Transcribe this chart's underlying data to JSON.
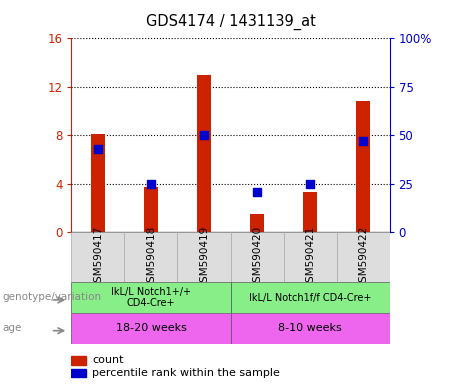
{
  "title": "GDS4174 / 1431139_at",
  "samples": [
    "GSM590417",
    "GSM590418",
    "GSM590419",
    "GSM590420",
    "GSM590421",
    "GSM590422"
  ],
  "count_values": [
    8.1,
    3.7,
    13.0,
    1.5,
    3.3,
    10.8
  ],
  "percentile_values": [
    43,
    25,
    50,
    21,
    25,
    47
  ],
  "bar_color": "#cc2200",
  "dot_color": "#0000cc",
  "ylim_left": [
    0,
    16
  ],
  "ylim_right": [
    0,
    100
  ],
  "yticks_left": [
    0,
    4,
    8,
    12,
    16
  ],
  "yticks_right": [
    0,
    25,
    50,
    75,
    100
  ],
  "ytick_labels_left": [
    "0",
    "4",
    "8",
    "12",
    "16"
  ],
  "ytick_labels_right": [
    "0",
    "25",
    "50",
    "75",
    "100%"
  ],
  "genotype_groups": [
    {
      "label": "IkL/L Notch1+/+\nCD4-Cre+",
      "start": 0,
      "end": 3,
      "color": "#88ee88"
    },
    {
      "label": "IkL/L Notch1f/f CD4-Cre+",
      "start": 3,
      "end": 6,
      "color": "#88ee88"
    }
  ],
  "age_groups": [
    {
      "label": "18-20 weeks",
      "start": 0,
      "end": 3,
      "color": "#ee66ee"
    },
    {
      "label": "8-10 weeks",
      "start": 3,
      "end": 6,
      "color": "#ee66ee"
    }
  ],
  "genotype_row_label": "genotype/variation",
  "age_row_label": "age",
  "legend_count_label": "count",
  "legend_percentile_label": "percentile rank within the sample",
  "bar_width": 0.25,
  "dot_size": 40,
  "axis_color_left": "#cc2200",
  "axis_color_right": "#0000cc",
  "label_color": "#888888"
}
